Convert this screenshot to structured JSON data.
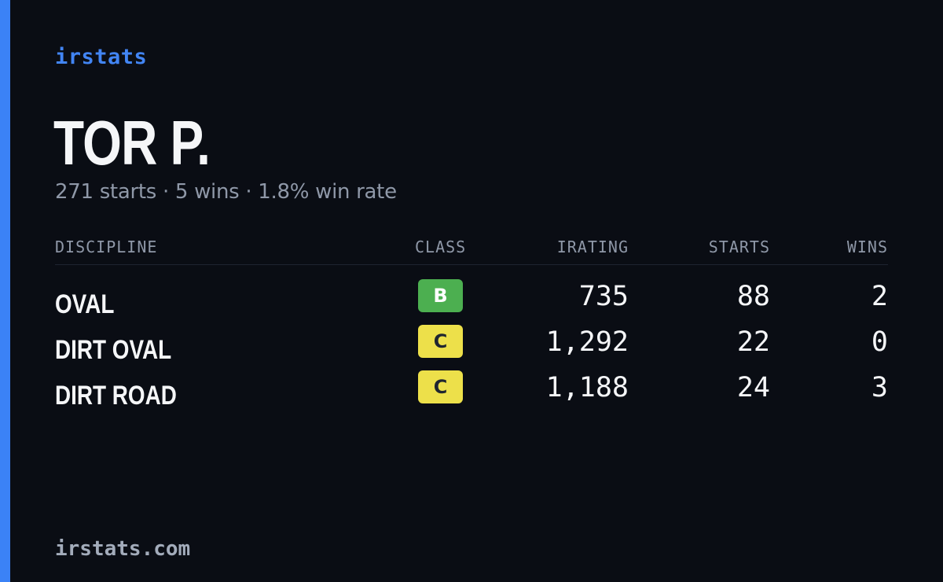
{
  "brand": "irstats",
  "driver": {
    "name": "TOR P.",
    "summary": "271 starts · 5 wins · 1.8% win rate"
  },
  "table": {
    "headers": {
      "discipline": "DISCIPLINE",
      "class": "CLASS",
      "irating": "IRATING",
      "starts": "STARTS",
      "wins": "WINS"
    },
    "rows": [
      {
        "discipline": "OVAL",
        "class": "B",
        "irating": "735",
        "starts": "88",
        "wins": "2"
      },
      {
        "discipline": "DIRT OVAL",
        "class": "C",
        "irating": "1,292",
        "starts": "22",
        "wins": "0"
      },
      {
        "discipline": "DIRT ROAD",
        "class": "C",
        "irating": "1,188",
        "starts": "24",
        "wins": "3"
      }
    ]
  },
  "footer": {
    "url": "irstats.com"
  },
  "colors": {
    "background": "#0a0d14",
    "accent": "#3b82f6",
    "class_b": "#4caf50",
    "class_c": "#ede04a"
  }
}
